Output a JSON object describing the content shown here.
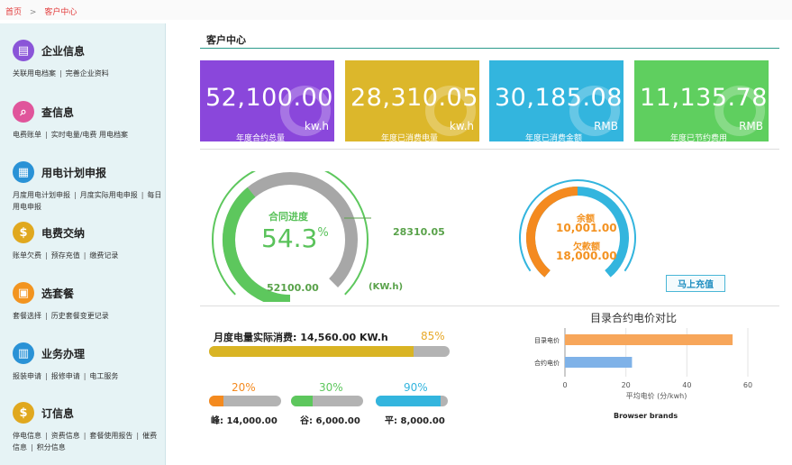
{
  "breadcrumb": {
    "home": "首页",
    "separator": ">",
    "current": "客户中心"
  },
  "sidebar": [
    {
      "key": "enterprise",
      "title": "企业信息",
      "icon": "document-icon",
      "color": "#8a55d8",
      "links": [
        "关联用电档案",
        "完善企业资料"
      ]
    },
    {
      "key": "query",
      "title": "查信息",
      "icon": "search-doc-icon",
      "color": "#e0559b",
      "links": [
        "电费账单",
        "实时电量/电费 用电档案"
      ]
    },
    {
      "key": "plan",
      "title": "用电计划申报",
      "icon": "report-icon",
      "color": "#2a92d6",
      "links": [
        "月度用电计划申报",
        "月度实际用电申报",
        "每日用电申报"
      ]
    },
    {
      "key": "pay",
      "title": "电费交纳",
      "icon": "dollar-icon",
      "color": "#e0a81f",
      "links": [
        "账单欠费",
        "预存充值",
        "缴费记录"
      ]
    },
    {
      "key": "package",
      "title": "选套餐",
      "icon": "gift-icon",
      "color": "#f29420",
      "links": [
        "套餐选择",
        "历史套餐变更记录"
      ]
    },
    {
      "key": "business",
      "title": "业务办理",
      "icon": "task-icon",
      "color": "#2a92d6",
      "links": [
        "报装申请",
        "报修申请",
        "电工服务"
      ]
    },
    {
      "key": "subscribe",
      "title": "订信息",
      "icon": "dollar-icon",
      "color": "#e0a81f",
      "links": [
        "停电信息",
        "资费信息",
        "套餐使用报告",
        "催费信息",
        "积分信息"
      ]
    }
  ],
  "main": {
    "title": "客户中心"
  },
  "cards": [
    {
      "value": "52,100.00",
      "unit": "kw.h",
      "label": "年度合约总量",
      "color": "#8a47db"
    },
    {
      "value": "28,310.05",
      "unit": "kw.h",
      "label": "年度已消费电量",
      "color": "#dcb72b"
    },
    {
      "value": "30,185.08",
      "unit": "RMB",
      "label": "年度已消费金额",
      "color": "#33b5de"
    },
    {
      "value": "11,135.78",
      "unit": "RMB",
      "label": "年度已节约费用",
      "color": "#5fcf5f"
    }
  ],
  "contract": {
    "label": "合同进度",
    "percent": "54.3",
    "percent_sign": "%",
    "progress": 0.543,
    "used": "28310.05",
    "total": "52100.00",
    "unit": "(KW.h)"
  },
  "balance": {
    "balance_label": "余额",
    "balance_value": "10,001.00",
    "arrears_label": "欠款额",
    "arrears_value": "18,000.00",
    "recharge_button": "马上充值",
    "ratio": 0.357
  },
  "monthly": {
    "label": "月度电量实际消费: 14,560.00 KW.h",
    "percent": "85%",
    "fraction": 0.85
  },
  "segments": [
    {
      "percent": "20%",
      "fraction": 0.2,
      "color": "#f48a1f",
      "label": "峰: 14,000.00"
    },
    {
      "percent": "30%",
      "fraction": 0.3,
      "color": "#5dc75d",
      "label": "谷: 6,000.00"
    },
    {
      "percent": "90%",
      "fraction": 0.9,
      "color": "#33b5de",
      "label": "平: 8,000.00"
    }
  ],
  "chart_data": {
    "type": "bar",
    "orientation": "horizontal",
    "title": "目录合约电价对比",
    "categories": [
      "目录电价",
      "合约电价"
    ],
    "values": [
      55,
      22
    ],
    "colors": [
      "#f7a65a",
      "#7fb2e8"
    ],
    "xlabel": "平均电价 (分/kwh)",
    "xlim": [
      0,
      60
    ],
    "xticks": [
      "0",
      "20",
      "40",
      "60"
    ],
    "footer": "Browser brands",
    "grid": true
  }
}
